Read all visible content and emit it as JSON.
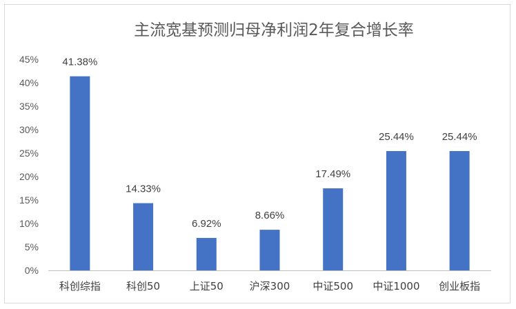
{
  "chart_data": {
    "type": "bar",
    "title": "主流宽基预测归母净利润2年复合增长率",
    "categories": [
      "科创综指",
      "科创50",
      "上证50",
      "沪深300",
      "中证500",
      "中证1000",
      "创业板指"
    ],
    "values": [
      41.38,
      14.33,
      6.92,
      8.66,
      17.49,
      25.44,
      25.44
    ],
    "data_labels": [
      "41.38%",
      "14.33%",
      "6.92%",
      "8.66%",
      "17.49%",
      "25.44%",
      "25.44%"
    ],
    "ylim": [
      0,
      45
    ],
    "yticks": [
      0,
      5,
      10,
      15,
      20,
      25,
      30,
      35,
      40,
      45
    ],
    "ytick_labels": [
      "0%",
      "5%",
      "10%",
      "15%",
      "20%",
      "25%",
      "30%",
      "35%",
      "40%",
      "45%"
    ],
    "xlabel": "",
    "ylabel": "",
    "grid": false,
    "legend": false,
    "bar_color": "#4472C4",
    "axis_color": "#bfbfbf"
  }
}
